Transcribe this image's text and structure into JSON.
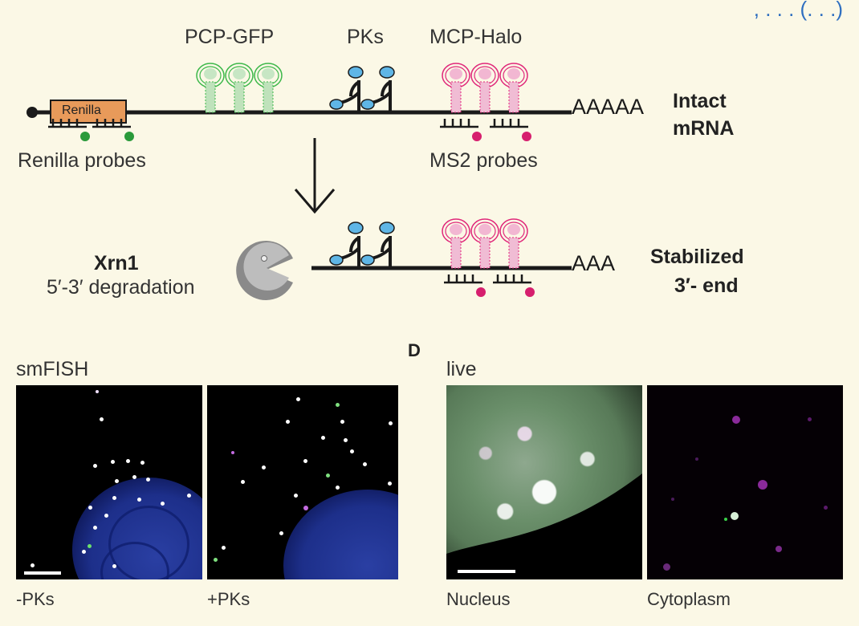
{
  "header_fragment": ", . . . (. . .)",
  "diagram": {
    "label_pcp": "PCP-GFP",
    "label_pks": "PKs",
    "label_mcp": "MCP-Halo",
    "renilla_box": "Renilla",
    "polya_long": "AAAAA",
    "polya_short": "AAA",
    "intact_line1": "Intact",
    "intact_line2": "mRNA",
    "renilla_probes": "Renilla probes",
    "ms2_probes": "MS2 probes",
    "xrn1": "Xrn1",
    "degradation": "5′-3′ degradation",
    "stabilized_line1": "Stabilized",
    "stabilized_line2": "3′- end",
    "colors": {
      "gfp": "#3db84a",
      "halo": "#e0287a",
      "pk": "#5fb6e6",
      "renilla": "#e89a5a",
      "line": "#1a1a1a"
    }
  },
  "panel_c": {
    "title": "smFISH",
    "left_caption": "-PKs",
    "right_caption": "+PKs"
  },
  "panel_d": {
    "letter": "D",
    "title": "live",
    "left_caption": "Nucleus",
    "right_caption": "Cytoplasm"
  }
}
